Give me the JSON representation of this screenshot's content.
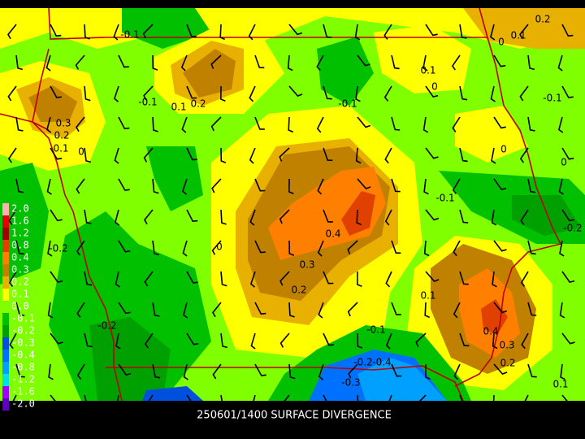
{
  "footer": {
    "title": "250601/1400 SURFACE DIVERGENCE"
  },
  "legend": {
    "labels": [
      "2.0",
      "1.6",
      "1.2",
      "0.8",
      "0.4",
      "0.3",
      "0.2",
      "0.1",
      "0.0",
      "-0.1",
      "-0.2",
      "-0.3",
      "-0.4",
      "-0.8",
      "-1.2",
      "-1.6",
      "-2.0"
    ]
  },
  "contour_labels": [
    "-0.1",
    "0.1",
    "0.2",
    "0",
    "0.1",
    "0",
    "-0.1",
    "0.1",
    "0.2",
    "-0.1",
    "-0.1",
    "0.3",
    "0.2",
    "0.1",
    "0",
    "0",
    "0",
    "-0.1",
    "-0.2",
    "-0.2",
    "0",
    "0.4",
    "0.3",
    "0.2",
    "0.1",
    "0.4",
    "0.3",
    "0.2",
    "-0.2",
    "-0.1",
    "-0.2",
    "-0.4",
    "-0.3",
    "0.1"
  ]
}
